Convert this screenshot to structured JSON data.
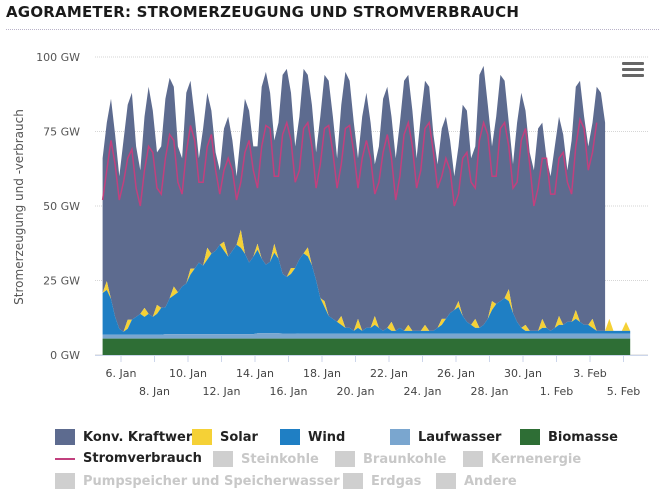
{
  "title": "AGORAMETER: STROMERZEUGUNG UND STROMVERBRAUCH",
  "menu_icon": "hamburger-menu-icon",
  "chart_data": {
    "type": "area",
    "title": "AGORAMETER: STROMERZEUGUNG UND STROMVERBRAUCH",
    "ylabel": "Stromerzeugung und -verbrauch",
    "xlabel": "",
    "ylim": [
      0,
      100
    ],
    "yunit": "GW",
    "yticks": [
      "0 GW",
      "25 GW",
      "50 GW",
      "75 GW",
      "100 GW"
    ],
    "ytick_values": [
      0,
      25,
      50,
      75,
      100
    ],
    "grid": true,
    "legend_placement": "bottom",
    "xlim_days": [
      4.9,
      36.6
    ],
    "xticks_row1": [
      {
        "day": 6,
        "label": "6. Jan"
      },
      {
        "day": 10,
        "label": "10. Jan"
      },
      {
        "day": 14,
        "label": "14. Jan"
      },
      {
        "day": 18,
        "label": "18. Jan"
      },
      {
        "day": 22,
        "label": "22. Jan"
      },
      {
        "day": 26,
        "label": "26. Jan"
      },
      {
        "day": 30,
        "label": "30. Jan"
      },
      {
        "day": 34,
        "label": "3. Feb"
      }
    ],
    "xticks_row2": [
      {
        "day": 8,
        "label": "8. Jan"
      },
      {
        "day": 12,
        "label": "12. Jan"
      },
      {
        "day": 16,
        "label": "16. Jan"
      },
      {
        "day": 20,
        "label": "20. Jan"
      },
      {
        "day": 24,
        "label": "24. Jan"
      },
      {
        "day": 28,
        "label": "28. Jan"
      },
      {
        "day": 32,
        "label": "1. Feb"
      },
      {
        "day": 36,
        "label": "5. Feb"
      }
    ],
    "x_day_note": "x values are days in January (32 = 1. Feb)",
    "x_start_day": 4.9,
    "x_step_days": 0.25,
    "stack_order": [
      "Biomasse",
      "Laufwasser",
      "Wind",
      "Solar",
      "Konv. Kraftwerke"
    ],
    "series": [
      {
        "name": "Biomasse",
        "color": "#2e6e35",
        "type": "area",
        "values": [
          5.5,
          5.5,
          5.5,
          5.5,
          5.5,
          5.5,
          5.5,
          5.5,
          5.5,
          5.5,
          5.5,
          5.5,
          5.5,
          5.5,
          5.5,
          5.5,
          5.5,
          5.5,
          5.5,
          5.5,
          5.5,
          5.5,
          5.5,
          5.5,
          5.5,
          5.5,
          5.5,
          5.5,
          5.5,
          5.5,
          5.5,
          5.5,
          5.5,
          5.5,
          5.5,
          5.5,
          5.5,
          5.5,
          5.5,
          5.5,
          5.5,
          5.5,
          5.5,
          5.5,
          5.5,
          5.5,
          5.5,
          5.5,
          5.5,
          5.5,
          5.5,
          5.5,
          5.5,
          5.5,
          5.5,
          5.5,
          5.5,
          5.5,
          5.5,
          5.5,
          5.5,
          5.5,
          5.5,
          5.5,
          5.5,
          5.5,
          5.5,
          5.5,
          5.5,
          5.5,
          5.5,
          5.5,
          5.5,
          5.5,
          5.5,
          5.5,
          5.5,
          5.5,
          5.5,
          5.5,
          5.5,
          5.5,
          5.5,
          5.5,
          5.5,
          5.5,
          5.5,
          5.5,
          5.5,
          5.5,
          5.5,
          5.5,
          5.5,
          5.5,
          5.5,
          5.5,
          5.5,
          5.5,
          5.5,
          5.5,
          5.5,
          5.5,
          5.5,
          5.5,
          5.5,
          5.5,
          5.5,
          5.5,
          5.5,
          5.5,
          5.5,
          5.5,
          5.5,
          5.5,
          5.5,
          5.5,
          5.5,
          5.5,
          5.5,
          5.5,
          5.5,
          5.5,
          5.5,
          5.5,
          5.5,
          5.5,
          5.5
        ]
      },
      {
        "name": "Laufwasser",
        "color": "#7aa6cf",
        "type": "area",
        "values": [
          1.3,
          1.3,
          1.3,
          1.3,
          1.3,
          1.3,
          1.3,
          1.3,
          1.3,
          1.3,
          1.3,
          1.3,
          1.3,
          1.3,
          1.3,
          1.5,
          1.5,
          1.5,
          1.5,
          1.5,
          1.5,
          1.5,
          1.5,
          1.5,
          1.5,
          1.5,
          1.5,
          1.5,
          1.5,
          1.5,
          1.5,
          1.5,
          1.5,
          1.5,
          1.5,
          1.5,
          1.5,
          1.8,
          1.8,
          1.8,
          1.8,
          1.8,
          1.8,
          1.7,
          1.7,
          1.7,
          1.7,
          1.6,
          1.6,
          1.6,
          1.6,
          1.6,
          1.6,
          1.6,
          1.6,
          1.6,
          1.6,
          1.6,
          1.6,
          1.6,
          1.6,
          1.6,
          1.6,
          1.6,
          1.6,
          1.6,
          1.6,
          1.6,
          1.6,
          1.6,
          1.6,
          1.6,
          1.6,
          1.6,
          1.6,
          1.6,
          1.6,
          1.6,
          1.6,
          1.6,
          1.6,
          1.6,
          1.6,
          1.6,
          1.6,
          1.6,
          1.6,
          1.6,
          1.6,
          1.6,
          1.6,
          1.6,
          1.6,
          1.6,
          1.6,
          1.6,
          1.6,
          1.6,
          1.6,
          1.6,
          1.6,
          1.6,
          1.6,
          1.6,
          1.6,
          1.6,
          1.6,
          1.6,
          1.6,
          1.6,
          1.6,
          1.6,
          1.6,
          1.6,
          1.6,
          1.6,
          1.6,
          1.6,
          1.6,
          1.6,
          1.6,
          1.6,
          1.6,
          1.6,
          1.6,
          1.6,
          1.6
        ]
      },
      {
        "name": "Wind",
        "color": "#1f7fc4",
        "type": "area",
        "values": [
          14,
          15,
          12,
          6,
          2,
          1,
          2,
          5,
          6,
          7,
          6,
          7,
          6,
          7,
          9,
          9,
          12,
          13,
          14,
          16,
          17,
          20,
          22,
          24,
          23,
          25,
          27,
          28,
          30,
          28,
          26,
          28,
          30,
          29,
          27,
          24,
          26,
          28,
          25,
          23,
          24,
          27,
          25,
          20,
          19,
          20,
          22,
          25,
          27,
          26,
          23,
          18,
          12,
          9,
          6,
          5,
          4,
          3,
          2,
          2,
          1,
          2,
          1,
          2,
          2,
          3,
          2,
          1,
          2,
          1,
          1,
          2,
          1,
          1,
          1,
          1,
          1,
          1,
          1,
          1,
          2,
          3,
          5,
          7,
          8,
          9,
          6,
          4,
          3,
          2,
          2,
          3,
          5,
          8,
          10,
          11,
          12,
          11,
          7,
          4,
          2,
          1,
          1,
          1,
          1,
          2,
          2,
          1,
          2,
          3,
          3,
          4,
          4,
          5,
          4,
          3,
          3,
          2,
          1,
          1,
          1,
          1,
          1,
          1,
          1,
          1,
          1,
          1,
          1
        ]
      },
      {
        "name": "Solar",
        "color": "#f5d136",
        "type": "area",
        "values": [
          0,
          3,
          0,
          0,
          0,
          0,
          3,
          0,
          0,
          0,
          3,
          0,
          0,
          3,
          0,
          0,
          0,
          3,
          0,
          0,
          0,
          2,
          0,
          0,
          0,
          4,
          0,
          0,
          0,
          3,
          0,
          0,
          0,
          6,
          0,
          0,
          0,
          2,
          0,
          0,
          0,
          3,
          0,
          0,
          0,
          2,
          0,
          0,
          0,
          3,
          0,
          0,
          0,
          2,
          0,
          0,
          0,
          3,
          0,
          0,
          0,
          3,
          0,
          0,
          0,
          3,
          0,
          0,
          0,
          3,
          0,
          0,
          0,
          2,
          0,
          0,
          0,
          2,
          0,
          0,
          0,
          2,
          0,
          0,
          0,
          2,
          0,
          0,
          0,
          3,
          0,
          0,
          0,
          3,
          0,
          0,
          0,
          4,
          0,
          0,
          0,
          2,
          0,
          0,
          0,
          3,
          0,
          0,
          0,
          3,
          0,
          0,
          0,
          3,
          0,
          0,
          0,
          3,
          0,
          0,
          0,
          4,
          0,
          0,
          0,
          3,
          0,
          0,
          0,
          2,
          0
        ]
      },
      {
        "name": "Konv. Kraftwerke",
        "color": "#5d6b8f",
        "type": "area",
        "note": "top of stack = total generation",
        "total_values": [
          66,
          78,
          86,
          74,
          60,
          72,
          84,
          88,
          70,
          62,
          80,
          90,
          82,
          68,
          70,
          86,
          93,
          90,
          70,
          66,
          88,
          92,
          80,
          66,
          76,
          88,
          82,
          68,
          62,
          76,
          80,
          72,
          60,
          74,
          86,
          82,
          70,
          70,
          90,
          95,
          88,
          72,
          78,
          94,
          96,
          88,
          70,
          80,
          96,
          94,
          84,
          68,
          80,
          94,
          92,
          80,
          66,
          84,
          95,
          92,
          78,
          66,
          80,
          88,
          78,
          64,
          70,
          86,
          90,
          80,
          66,
          78,
          92,
          94,
          82,
          66,
          80,
          92,
          90,
          74,
          64,
          76,
          80,
          72,
          60,
          70,
          84,
          82,
          66,
          70,
          94,
          97,
          84,
          70,
          80,
          94,
          92,
          78,
          64,
          78,
          88,
          82,
          68,
          62,
          76,
          78,
          66,
          60,
          70,
          80,
          74,
          62,
          72,
          90,
          92,
          80,
          70,
          78,
          90,
          88,
          78,
          null,
          null,
          null,
          null,
          null,
          null,
          null,
          null
        ]
      },
      {
        "name": "Stromverbrauch",
        "color": "#c2407e",
        "type": "line",
        "values": [
          52,
          62,
          72,
          64,
          52,
          58,
          66,
          69,
          56,
          50,
          62,
          70,
          68,
          56,
          54,
          66,
          74,
          72,
          58,
          54,
          68,
          77,
          72,
          58,
          58,
          70,
          74,
          62,
          54,
          62,
          66,
          62,
          52,
          58,
          68,
          72,
          62,
          56,
          70,
          77,
          76,
          60,
          60,
          74,
          78,
          72,
          58,
          62,
          76,
          78,
          70,
          56,
          64,
          76,
          77,
          68,
          56,
          64,
          76,
          77,
          68,
          56,
          66,
          72,
          66,
          54,
          58,
          68,
          74,
          66,
          52,
          60,
          74,
          78,
          70,
          56,
          62,
          76,
          78,
          68,
          56,
          60,
          66,
          62,
          50,
          54,
          66,
          68,
          58,
          56,
          72,
          78,
          74,
          60,
          60,
          76,
          78,
          70,
          56,
          58,
          72,
          76,
          64,
          50,
          56,
          66,
          66,
          54,
          54,
          66,
          68,
          58,
          54,
          70,
          79,
          76,
          62,
          68,
          78,
          null,
          null,
          null,
          null,
          null,
          null,
          null,
          null,
          null,
          null
        ]
      }
    ],
    "legend": [
      {
        "name": "Konv. Kraftwerke",
        "kind": "area",
        "color": "#5d6b8f",
        "active": true
      },
      {
        "name": "Solar",
        "kind": "area",
        "color": "#f5d136",
        "active": true
      },
      {
        "name": "Wind",
        "kind": "area",
        "color": "#1f7fc4",
        "active": true
      },
      {
        "name": "Laufwasser",
        "kind": "area",
        "color": "#7aa6cf",
        "active": true
      },
      {
        "name": "Biomasse",
        "kind": "area",
        "color": "#2e6e35",
        "active": true
      },
      {
        "name": "Stromverbrauch",
        "kind": "line",
        "color": "#c2407e",
        "active": true
      },
      {
        "name": "Steinkohle",
        "kind": "area",
        "color": "#cfcfcf",
        "active": false
      },
      {
        "name": "Braunkohle",
        "kind": "area",
        "color": "#cfcfcf",
        "active": false
      },
      {
        "name": "Kernenergie",
        "kind": "area",
        "color": "#cfcfcf",
        "active": false
      },
      {
        "name": "Pumpspeicher und Speicherwasser",
        "kind": "area",
        "color": "#cfcfcf",
        "active": false
      },
      {
        "name": "Erdgas",
        "kind": "area",
        "color": "#cfcfcf",
        "active": false
      },
      {
        "name": "Andere",
        "kind": "area",
        "color": "#cfcfcf",
        "active": false
      }
    ]
  }
}
